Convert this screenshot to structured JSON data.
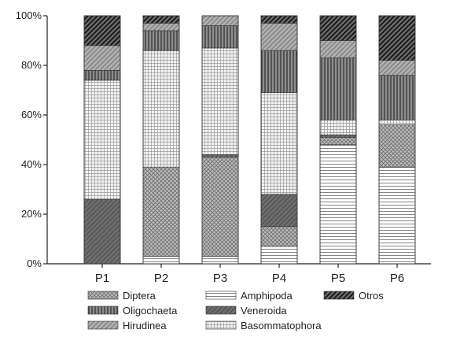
{
  "chart_data": {
    "type": "bar",
    "stacked": true,
    "categories": [
      "P1",
      "P2",
      "P3",
      "P4",
      "P5",
      "P6"
    ],
    "ylim": [
      0,
      100
    ],
    "yticks": [
      0,
      20,
      40,
      60,
      80,
      100
    ],
    "ytick_labels": [
      "0%",
      "20%",
      "40%",
      "60%",
      "80%",
      "100%"
    ],
    "grid": false,
    "legend_position": "bottom",
    "series": [
      {
        "name": "Amphipoda",
        "values": [
          0,
          3,
          3,
          7,
          48,
          39
        ],
        "pattern": "hlines"
      },
      {
        "name": "Diptera",
        "values": [
          0,
          36,
          40,
          8,
          3,
          17
        ],
        "pattern": "crosshatch"
      },
      {
        "name": "Veneroida",
        "values": [
          26,
          0,
          1,
          13,
          1,
          0
        ],
        "pattern": "darkdiag"
      },
      {
        "name": "Basommatophora",
        "values": [
          48,
          47,
          43,
          41,
          6,
          2
        ],
        "pattern": "grid"
      },
      {
        "name": "Oligochaeta",
        "values": [
          4,
          8,
          9,
          17,
          25,
          18
        ],
        "pattern": "vlines"
      },
      {
        "name": "Hirudinea",
        "values": [
          10,
          3,
          4,
          11,
          7,
          6
        ],
        "pattern": "diag"
      },
      {
        "name": "Otros",
        "values": [
          12,
          3,
          0,
          3,
          10,
          18
        ],
        "pattern": "blackdiag"
      }
    ],
    "legend_order": [
      "Diptera",
      "Amphipoda",
      "Otros",
      "Oligochaeta",
      "Veneroida",
      "Hirudinea",
      "Basommatophora"
    ]
  }
}
